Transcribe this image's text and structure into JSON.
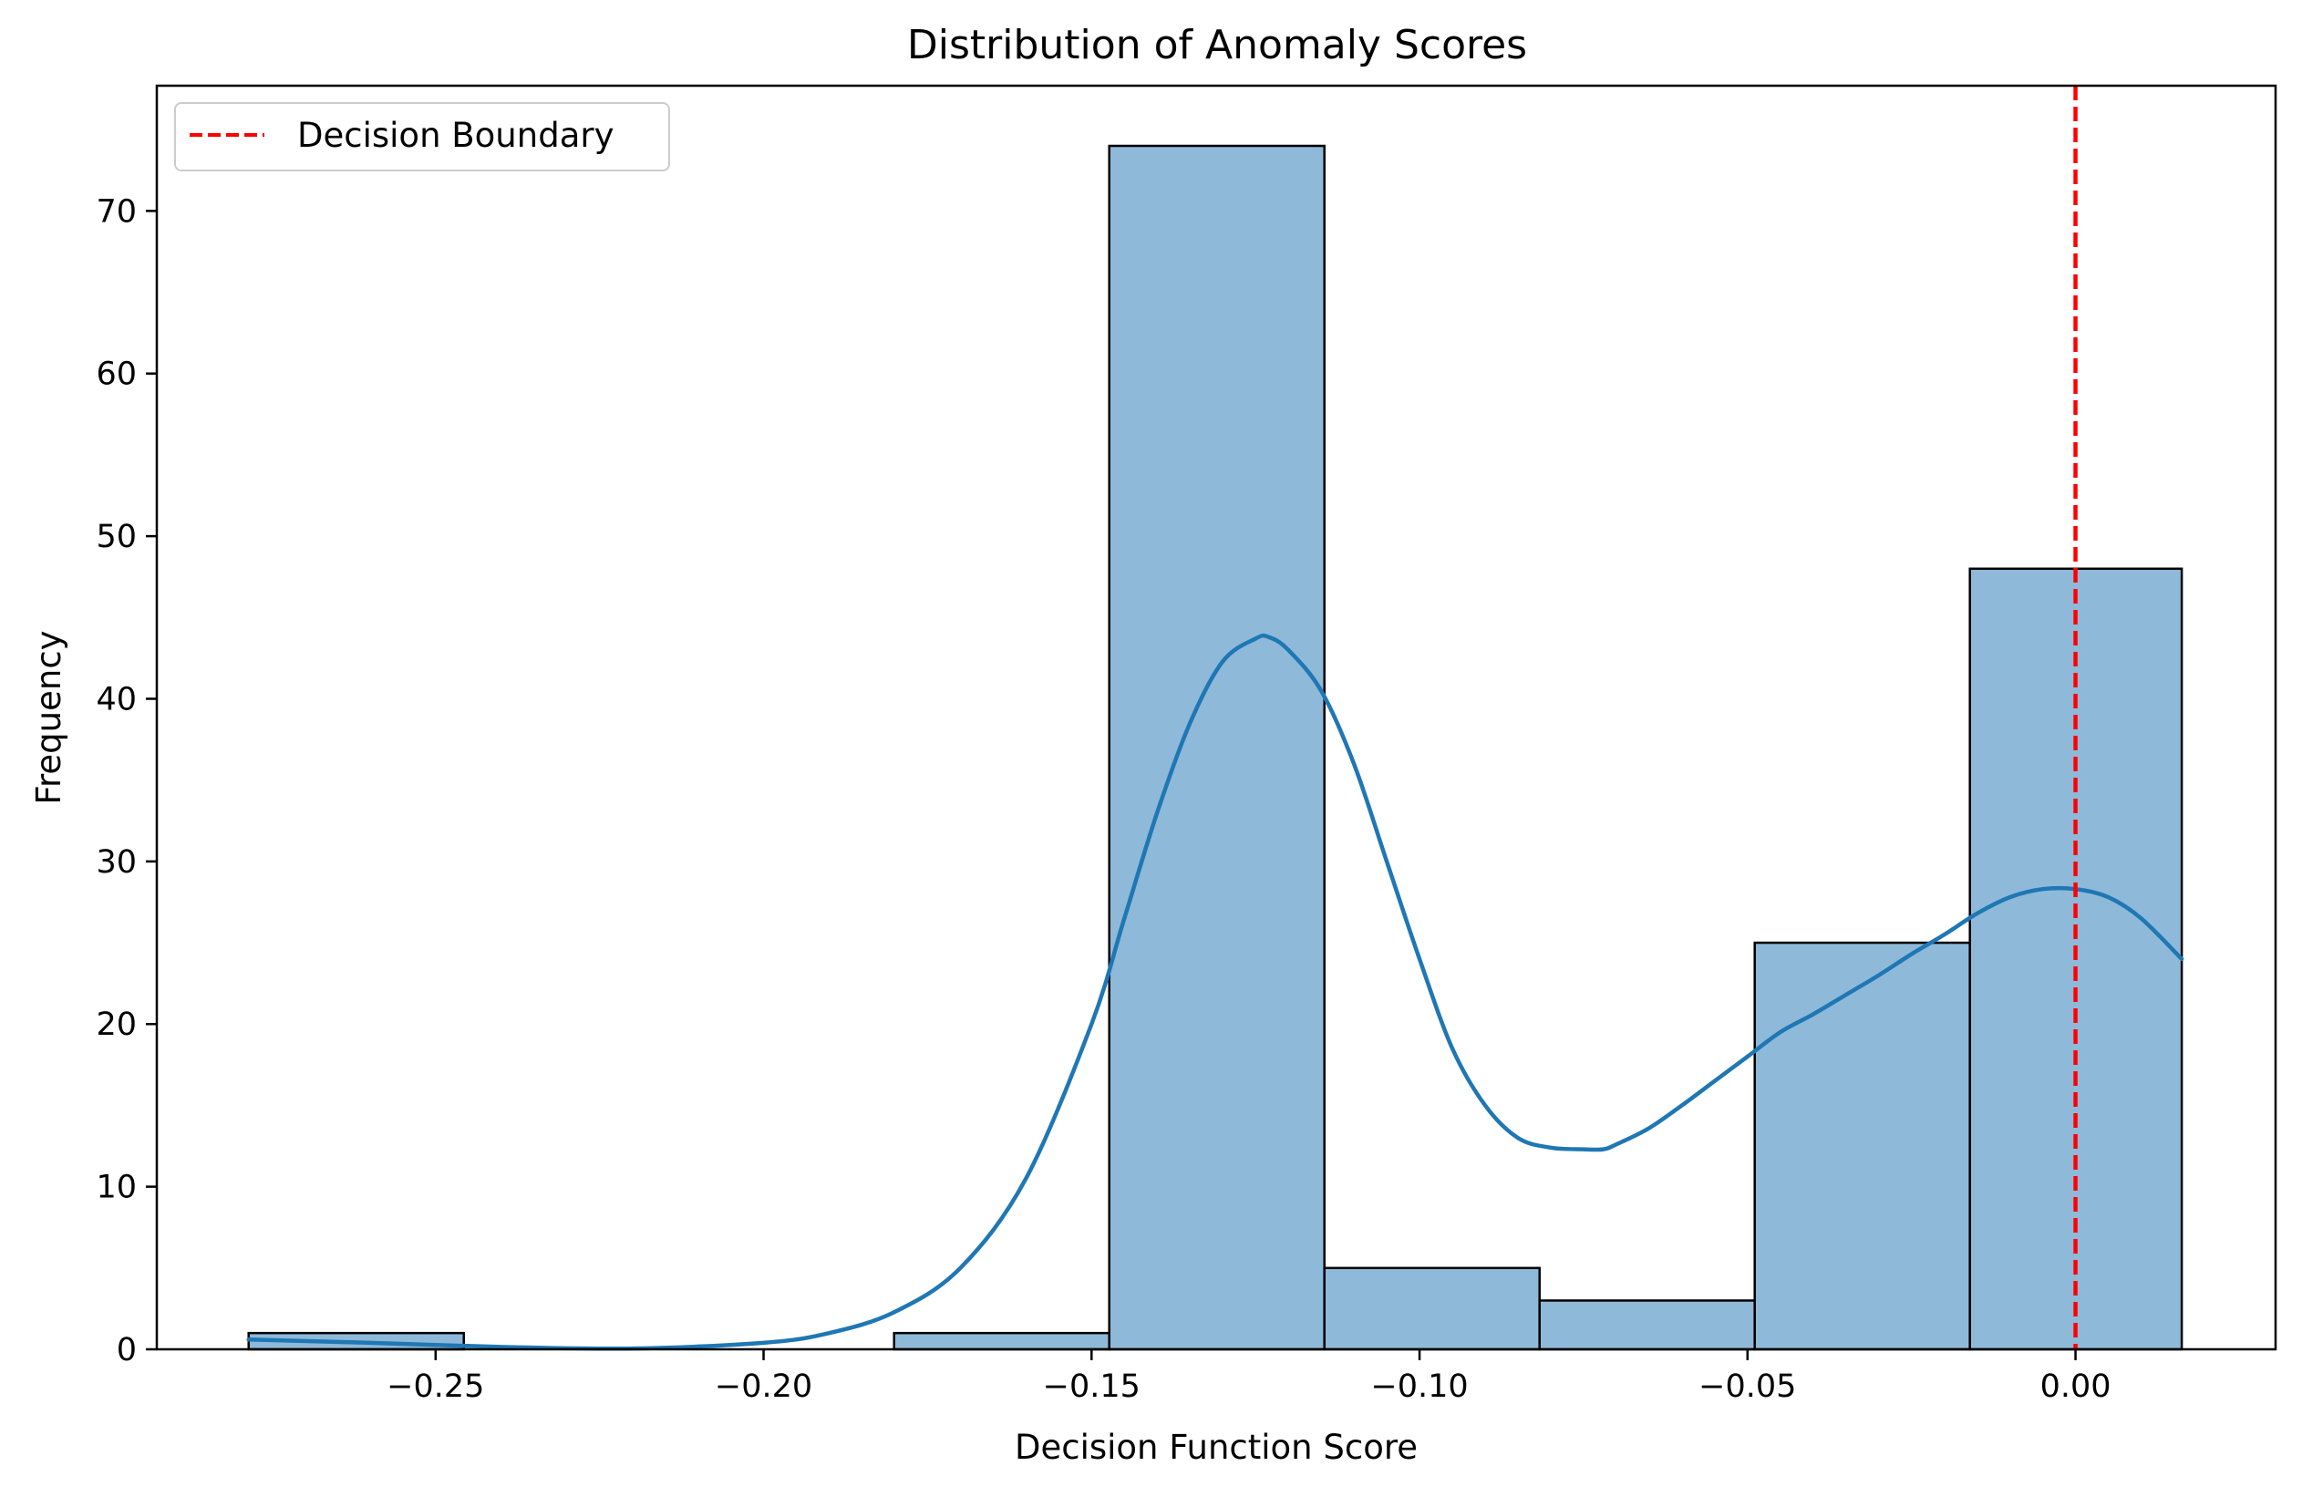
{
  "chart_data": {
    "type": "bar",
    "title": "Distribution of Anomaly Scores",
    "xlabel": "Decision Function Score",
    "ylabel": "Frequency",
    "xlim": [
      -0.2925,
      0.0305
    ],
    "ylim": [
      0,
      77.7
    ],
    "x_ticks": [
      {
        "value": -0.25,
        "label": "−0.25"
      },
      {
        "value": -0.2,
        "label": "−0.20"
      },
      {
        "value": -0.15,
        "label": "−0.15"
      },
      {
        "value": -0.1,
        "label": "−0.10"
      },
      {
        "value": -0.05,
        "label": "−0.05"
      },
      {
        "value": 0.0,
        "label": "0.00"
      }
    ],
    "y_ticks": [
      {
        "value": 0,
        "label": "0"
      },
      {
        "value": 10,
        "label": "10"
      },
      {
        "value": 20,
        "label": "20"
      },
      {
        "value": 30,
        "label": "30"
      },
      {
        "value": 40,
        "label": "40"
      },
      {
        "value": 50,
        "label": "50"
      },
      {
        "value": 60,
        "label": "60"
      },
      {
        "value": 70,
        "label": "70"
      }
    ],
    "bin_edges": [
      -0.2785,
      -0.2457,
      -0.2129,
      -0.1801,
      -0.1473,
      -0.1145,
      -0.0817,
      -0.0489,
      -0.0161,
      0.0162
    ],
    "counts": [
      1,
      0,
      0,
      1,
      74,
      5,
      3,
      25,
      48
    ],
    "kde": {
      "x": [
        -0.2785,
        -0.26,
        -0.24,
        -0.22,
        -0.2,
        -0.19,
        -0.18,
        -0.17,
        -0.16,
        -0.15,
        -0.145,
        -0.14,
        -0.135,
        -0.13,
        -0.125,
        -0.123,
        -0.12,
        -0.115,
        -0.11,
        -0.105,
        -0.1,
        -0.095,
        -0.09,
        -0.085,
        -0.08,
        -0.075,
        -0.072,
        -0.07,
        -0.065,
        -0.06,
        -0.055,
        -0.05,
        -0.045,
        -0.04,
        -0.035,
        -0.03,
        -0.025,
        -0.02,
        -0.015,
        -0.01,
        -0.005,
        0.0,
        0.005,
        0.01,
        0.0162
      ],
      "y": [
        0.6,
        0.4,
        0.15,
        0.05,
        0.4,
        1.0,
        2.3,
        5.0,
        10.5,
        20.0,
        26.5,
        33.0,
        38.5,
        42.3,
        43.7,
        43.8,
        43.0,
        40.5,
        36.0,
        30.0,
        24.0,
        18.5,
        15.0,
        13.0,
        12.4,
        12.3,
        12.3,
        12.6,
        13.6,
        15.0,
        16.5,
        18.0,
        19.5,
        20.6,
        21.8,
        23.0,
        24.3,
        25.5,
        26.8,
        27.8,
        28.3,
        28.3,
        27.8,
        26.5,
        24.0
      ]
    },
    "boundary_x": 0.0,
    "legend": {
      "position": "top-left",
      "entries": [
        {
          "label": "Decision Boundary",
          "style": "dashed",
          "color": "#ff0000"
        }
      ]
    },
    "colors": {
      "bar_fill": "#8fb9d9",
      "bar_edge": "#000000",
      "kde_line": "#1f77b4",
      "boundary": "#ff0000"
    },
    "grid": false
  }
}
